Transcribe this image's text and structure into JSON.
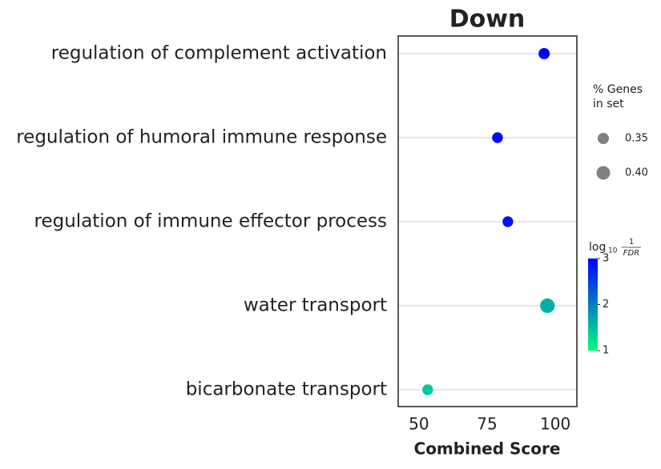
{
  "chart_data": {
    "type": "dotplot",
    "title": "Down",
    "xlabel": "Combined Score",
    "categories": [
      "regulation of complement activation",
      "regulation of humoral immune response",
      "regulation of immune effector process",
      "water transport",
      "bicarbonate transport"
    ],
    "values": [
      95.9,
      78.8,
      82.6,
      97.1,
      53.2
    ],
    "sizes": [
      0.35,
      0.34,
      0.34,
      0.42,
      0.34
    ],
    "color_values": [
      2.95,
      2.9,
      2.85,
      1.62,
      1.44
    ],
    "xlim": [
      42.4,
      107.9
    ],
    "xticks": [
      50,
      75,
      100
    ],
    "grid": true,
    "size_legend": {
      "title": [
        "% Genes",
        "in set"
      ],
      "values": [
        0.35,
        {
          "value": 0.4,
          "label": "0.40"
        }
      ],
      "color": "#808080"
    },
    "colorbar": {
      "title": {
        "base": "log",
        "sub": "10",
        "num": "1",
        "den": "FDR"
      },
      "lim": [
        1,
        3
      ],
      "ticks": [
        1,
        2,
        3
      ],
      "colors": [
        "#00ff80",
        "#0000ff"
      ]
    }
  }
}
